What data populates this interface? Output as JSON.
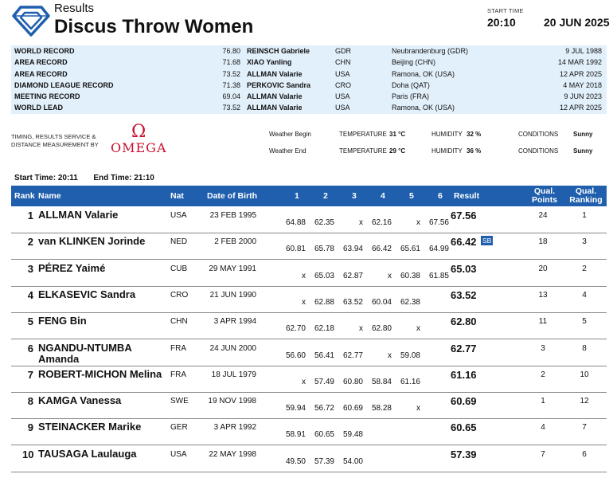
{
  "header": {
    "results_label": "Results",
    "event_title": "Discus Throw Women",
    "start_time_label": "START TIME",
    "start_time": "20:10",
    "date": "20 JUN 2025"
  },
  "records": [
    {
      "name": "WORLD RECORD",
      "mark": "76.80",
      "athlete": "REINSCH Gabriele",
      "nat": "GDR",
      "venue": "Neubrandenburg (GDR)",
      "date": "9 JUL 1988"
    },
    {
      "name": "AREA RECORD",
      "mark": "71.68",
      "athlete": "XIAO Yanling",
      "nat": "CHN",
      "venue": "Beijing (CHN)",
      "date": "14 MAR 1992"
    },
    {
      "name": "AREA RECORD",
      "mark": "73.52",
      "athlete": "ALLMAN Valarie",
      "nat": "USA",
      "venue": "Ramona, OK (USA)",
      "date": "12 APR 2025"
    },
    {
      "name": "DIAMOND LEAGUE RECORD",
      "mark": "71.38",
      "athlete": "PERKOVIC Sandra",
      "nat": "CRO",
      "venue": "Doha (QAT)",
      "date": "4 MAY 2018"
    },
    {
      "name": "MEETING RECORD",
      "mark": "69.04",
      "athlete": "ALLMAN Valarie",
      "nat": "USA",
      "venue": "Paris (FRA)",
      "date": "9 JUN 2023"
    },
    {
      "name": "WORLD LEAD",
      "mark": "73.52",
      "athlete": "ALLMAN Valarie",
      "nat": "USA",
      "venue": "Ramona, OK (USA)",
      "date": "12 APR 2025"
    }
  ],
  "timing": {
    "text": "TIMING, RESULTS SERVICE & DISTANCE MEASUREMENT BY",
    "omega_symbol": "Ω",
    "omega_word": "OMEGA"
  },
  "weather": {
    "begin": {
      "label": "Weather Begin",
      "temp_label": "TEMPERATURE",
      "temp": "31 °C",
      "hum_label": "HUMIDITY",
      "hum": "32 %",
      "cond_label": "CONDITIONS",
      "cond": "Sunny"
    },
    "end": {
      "label": "Weather End",
      "temp_label": "TEMPERATURE",
      "temp": "29 °C",
      "hum_label": "HUMIDITY",
      "hum": "36 %",
      "cond_label": "CONDITIONS",
      "cond": "Sunny"
    }
  },
  "times": {
    "start_label": "Start Time:",
    "start": "20:11",
    "end_label": "End Time:",
    "end": "21:10"
  },
  "table": {
    "headers": {
      "rank": "Rank",
      "name": "Name",
      "nat": "Nat",
      "dob": "Date of Birth",
      "a1": "1",
      "a2": "2",
      "a3": "3",
      "a4": "4",
      "a5": "5",
      "a6": "6",
      "result": "Result",
      "qp_1": "Qual.",
      "qp_2": "Points",
      "qr_1": "Qual.",
      "qr_2": "Ranking"
    },
    "rows": [
      {
        "rank": "1",
        "name": "ALLMAN Valarie",
        "nat": "USA",
        "dob": "23 FEB 1995",
        "att": [
          "64.88",
          "62.35",
          "x",
          "62.16",
          "x",
          "67.56"
        ],
        "result": "67.56",
        "sb": "",
        "qp": "24",
        "qr": "1"
      },
      {
        "rank": "2",
        "name": "van KLINKEN Jorinde",
        "nat": "NED",
        "dob": "2 FEB 2000",
        "att": [
          "60.81",
          "65.78",
          "63.94",
          "66.42",
          "65.61",
          "64.99"
        ],
        "result": "66.42",
        "sb": "SB",
        "qp": "18",
        "qr": "3"
      },
      {
        "rank": "3",
        "name": "PÉREZ Yaimé",
        "nat": "CUB",
        "dob": "29 MAY 1991",
        "att": [
          "x",
          "65.03",
          "62.87",
          "x",
          "60.38",
          "61.85"
        ],
        "result": "65.03",
        "sb": "",
        "qp": "20",
        "qr": "2"
      },
      {
        "rank": "4",
        "name": "ELKASEVIC Sandra",
        "nat": "CRO",
        "dob": "21 JUN 1990",
        "att": [
          "x",
          "62.88",
          "63.52",
          "60.04",
          "62.38",
          ""
        ],
        "result": "63.52",
        "sb": "",
        "qp": "13",
        "qr": "4"
      },
      {
        "rank": "5",
        "name": "FENG Bin",
        "nat": "CHN",
        "dob": "3 APR 1994",
        "att": [
          "62.70",
          "62.18",
          "x",
          "62.80",
          "x",
          ""
        ],
        "result": "62.80",
        "sb": "",
        "qp": "11",
        "qr": "5"
      },
      {
        "rank": "6",
        "name": "NGANDU-NTUMBA Amanda",
        "nat": "FRA",
        "dob": "24 JUN 2000",
        "att": [
          "56.60",
          "56.41",
          "62.77",
          "x",
          "59.08",
          ""
        ],
        "result": "62.77",
        "sb": "",
        "qp": "3",
        "qr": "8"
      },
      {
        "rank": "7",
        "name": "ROBERT-MICHON Melina",
        "nat": "FRA",
        "dob": "18 JUL 1979",
        "att": [
          "x",
          "57.49",
          "60.80",
          "58.84",
          "61.16",
          ""
        ],
        "result": "61.16",
        "sb": "",
        "qp": "2",
        "qr": "10"
      },
      {
        "rank": "8",
        "name": "KAMGA Vanessa",
        "nat": "SWE",
        "dob": "19 NOV 1998",
        "att": [
          "59.94",
          "56.72",
          "60.69",
          "58.28",
          "x",
          ""
        ],
        "result": "60.69",
        "sb": "",
        "qp": "1",
        "qr": "12"
      },
      {
        "rank": "9",
        "name": "STEINACKER Marike",
        "nat": "GER",
        "dob": "3 APR 1992",
        "att": [
          "58.91",
          "60.65",
          "59.48",
          "",
          "",
          ""
        ],
        "result": "60.65",
        "sb": "",
        "qp": "4",
        "qr": "7"
      },
      {
        "rank": "10",
        "name": "TAUSAGA Laulauga",
        "nat": "USA",
        "dob": "22 MAY 1998",
        "att": [
          "49.50",
          "57.39",
          "54.00",
          "",
          "",
          ""
        ],
        "result": "57.39",
        "sb": "",
        "qp": "7",
        "qr": "6"
      }
    ]
  },
  "colors": {
    "header_blue": "#1f5fad",
    "record_bg": "#e2f0fb",
    "omega_red": "#c8102e",
    "logo_blue": "#1f5fad"
  }
}
